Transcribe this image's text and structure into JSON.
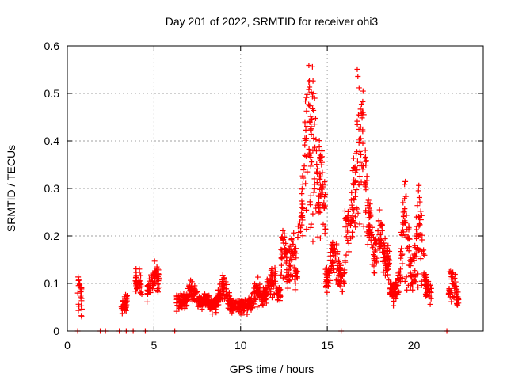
{
  "chart_data": {
    "type": "scatter",
    "title": "Day 201 of 2022, SRMTID for receiver ohi3",
    "xlabel": "GPS time / hours",
    "ylabel": "SRMTID / TECUs",
    "xlim": [
      0,
      24
    ],
    "ylim": [
      0,
      0.6
    ],
    "xticks": [
      0,
      5,
      10,
      15,
      20
    ],
    "yticks": [
      0,
      0.1,
      0.2,
      0.3,
      0.4,
      0.5,
      0.6
    ],
    "grid": true,
    "marker": "+",
    "color": "#ff0000",
    "zero_points_x": [
      0.6,
      1.9,
      2.2,
      3.0,
      3.4,
      3.8,
      4.5,
      6.2,
      15.8,
      21.9
    ],
    "segments": [
      {
        "x0": 0.6,
        "x1": 0.85,
        "base": 0.035,
        "spread": 0.025,
        "peaks": [
          [
            0.65,
            0.1
          ]
        ]
      },
      {
        "x0": 3.1,
        "x1": 3.45,
        "base": 0.045,
        "spread": 0.02,
        "peaks": [
          [
            3.35,
            0.065
          ]
        ]
      },
      {
        "x0": 3.9,
        "x1": 4.3,
        "base": 0.085,
        "spread": 0.025,
        "peaks": [
          [
            4.1,
            0.12
          ]
        ]
      },
      {
        "x0": 4.6,
        "x1": 5.3,
        "base": 0.085,
        "spread": 0.025,
        "peaks": [
          [
            5.1,
            0.13
          ]
        ]
      },
      {
        "x0": 6.3,
        "x1": 8.2,
        "base": 0.065,
        "spread": 0.02,
        "peaks": [
          [
            7.2,
            0.1
          ]
        ]
      },
      {
        "x0": 8.2,
        "x1": 11.3,
        "base": 0.055,
        "spread": 0.02,
        "peaks": [
          [
            9.0,
            0.11
          ],
          [
            11.0,
            0.1
          ]
        ]
      },
      {
        "x0": 11.3,
        "x1": 12.3,
        "base": 0.075,
        "spread": 0.025,
        "peaks": [
          [
            11.8,
            0.13
          ]
        ]
      },
      {
        "x0": 12.3,
        "x1": 13.3,
        "base": 0.09,
        "spread": 0.03,
        "peaks": [
          [
            12.5,
            0.2
          ],
          [
            13.0,
            0.2
          ]
        ]
      },
      {
        "x0": 13.3,
        "x1": 14.9,
        "base": 0.22,
        "spread": 0.08,
        "peaks": [
          [
            13.9,
            0.53
          ],
          [
            14.2,
            0.52
          ],
          [
            14.6,
            0.36
          ]
        ]
      },
      {
        "x0": 14.9,
        "x1": 16.0,
        "base": 0.11,
        "spread": 0.03,
        "peaks": [
          [
            15.4,
            0.18
          ]
        ]
      },
      {
        "x0": 16.0,
        "x1": 17.6,
        "base": 0.22,
        "spread": 0.07,
        "peaks": [
          [
            16.8,
            0.49
          ],
          [
            17.0,
            0.5
          ]
        ]
      },
      {
        "x0": 17.6,
        "x1": 18.6,
        "base": 0.15,
        "spread": 0.04,
        "peaks": [
          [
            18.0,
            0.22
          ]
        ]
      },
      {
        "x0": 18.6,
        "x1": 21.0,
        "base": 0.085,
        "spread": 0.035,
        "peaks": [
          [
            19.5,
            0.29
          ],
          [
            20.3,
            0.28
          ]
        ]
      },
      {
        "x0": 22.0,
        "x1": 22.6,
        "base": 0.06,
        "spread": 0.02,
        "peaks": [
          [
            22.2,
            0.12
          ]
        ]
      }
    ]
  }
}
